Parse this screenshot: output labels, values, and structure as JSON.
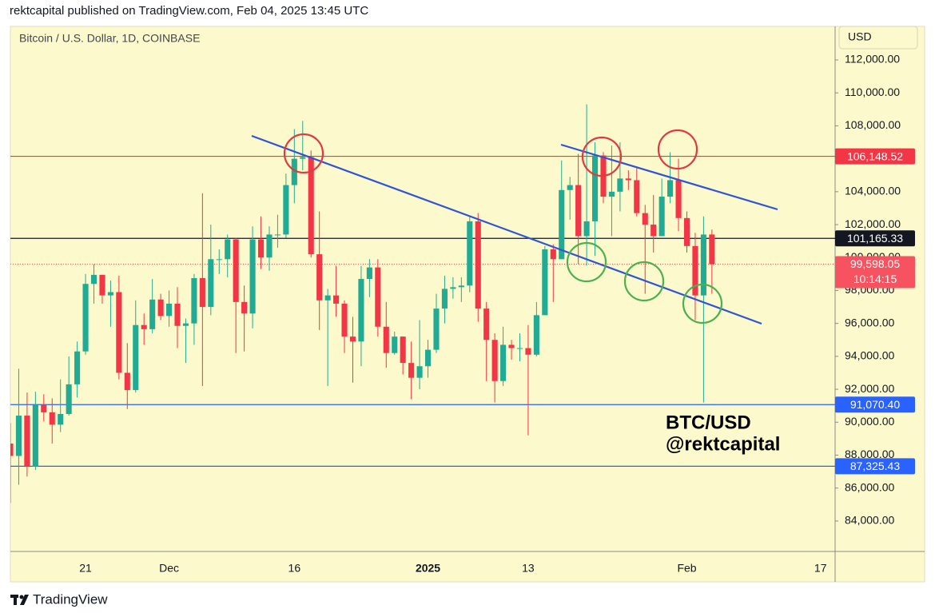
{
  "header": {
    "byline": "rektcapital published on TradingView.com, Feb 04, 2025 13:45 UTC"
  },
  "chart_data": {
    "type": "candlestick",
    "title": "Bitcoin / U.S. Dollar, 1D, COINBASE",
    "currency": "USD",
    "categories": [
      null,
      null,
      null,
      null,
      null,
      null,
      null,
      null,
      null,
      "21",
      null,
      null,
      null,
      null,
      null,
      null,
      null,
      null,
      null,
      "Dec",
      null,
      null,
      null,
      null,
      null,
      null,
      null,
      null,
      null,
      null,
      null,
      null,
      null,
      null,
      "16",
      null,
      null,
      null,
      null,
      null,
      null,
      null,
      null,
      null,
      null,
      null,
      null,
      null,
      null,
      null,
      "2025",
      null,
      null,
      null,
      null,
      null,
      null,
      null,
      null,
      null,
      null,
      null,
      "13",
      null,
      null,
      null,
      null,
      null,
      null,
      null,
      null,
      null,
      null,
      null,
      null,
      null,
      null,
      null,
      null,
      null,
      null,
      "Feb",
      null,
      null,
      null,
      null,
      null,
      null,
      null,
      null,
      null,
      null,
      null,
      null,
      null,
      null,
      null,
      "17",
      null
    ],
    "open": [
      88700,
      87950,
      90400,
      87300,
      91050,
      90600,
      89850,
      90500,
      92300,
      94300,
      98400,
      98950,
      97700,
      97900,
      93000,
      91950,
      95900,
      95650,
      97450,
      96450,
      97200,
      95850,
      96000,
      98750,
      97000,
      99900,
      99900,
      101100,
      97300,
      96600,
      101100,
      100000,
      101400,
      101400,
      104400,
      106000,
      106100,
      100200,
      97400,
      97700,
      97200,
      95200,
      94900,
      98700,
      99400,
      95800,
      94200,
      95200,
      93600,
      92700,
      93400,
      94400,
      96900,
      98100,
      98200,
      98300,
      102200,
      96900,
      95000,
      92500,
      94700,
      94500,
      94500,
      94100,
      96500,
      100500,
      99900,
      104100,
      104400,
      101300,
      102200,
      106200,
      103700,
      104000,
      104800,
      104700,
      102700,
      102000,
      101300,
      103700,
      104700,
      102400,
      100700,
      97700,
      101400,
      null,
      null,
      null,
      null,
      null,
      null,
      null,
      null,
      null,
      null,
      null,
      null,
      null,
      null
    ],
    "high": [
      89950,
      93250,
      91800,
      91850,
      91700,
      91450,
      92600,
      94000,
      94900,
      99000,
      99600,
      98950,
      98600,
      98900,
      94800,
      97400,
      96600,
      98700,
      97800,
      98000,
      98200,
      96300,
      99000,
      103900,
      102000,
      100500,
      101400,
      101200,
      98300,
      101900,
      102500,
      101900,
      102600,
      105100,
      107800,
      108300,
      106500,
      102800,
      98100,
      99500,
      97400,
      96400,
      99500,
      99900,
      99900,
      97300,
      95500,
      95200,
      94900,
      96200,
      95000,
      97800,
      98900,
      98800,
      98800,
      102500,
      102700,
      97300,
      95400,
      95800,
      95000,
      95400,
      95900,
      97300,
      100700,
      100800,
      105900,
      104900,
      106300,
      109300,
      107000,
      106400,
      106800,
      107000,
      105300,
      105500,
      103200,
      103800,
      104800,
      106400,
      106000,
      102800,
      101500,
      102500,
      101700,
      null,
      null,
      null,
      null,
      null,
      null,
      null,
      null,
      null,
      null,
      null,
      null,
      null,
      null
    ],
    "low": [
      85100,
      86200,
      86700,
      87100,
      90050,
      88700,
      89400,
      90400,
      91500,
      94100,
      97200,
      97200,
      95800,
      92600,
      90800,
      91800,
      94700,
      95400,
      96200,
      95800,
      94500,
      93600,
      94700,
      92200,
      96500,
      99000,
      98800,
      94200,
      94300,
      95700,
      99300,
      99200,
      100600,
      101200,
      103300,
      105300,
      100000,
      95600,
      92200,
      96400,
      94200,
      92400,
      93400,
      97600,
      95200,
      93300,
      94100,
      92900,
      91400,
      92000,
      92700,
      94200,
      96000,
      97500,
      97300,
      97900,
      96100,
      92500,
      91200,
      92200,
      93800,
      93700,
      89200,
      94000,
      96500,
      97300,
      99900,
      102300,
      99600,
      99500,
      100100,
      103300,
      101300,
      102800,
      104100,
      102500,
      97800,
      100300,
      101300,
      103300,
      101600,
      100300,
      96200,
      91200,
      97800,
      null,
      null,
      null,
      null,
      null,
      null,
      null,
      null,
      null,
      null,
      null,
      null,
      null,
      null
    ],
    "close": [
      87950,
      90400,
      87300,
      91050,
      90600,
      89850,
      90500,
      92300,
      94300,
      98400,
      98950,
      97700,
      97900,
      93000,
      91950,
      95900,
      95650,
      97450,
      96450,
      97200,
      95850,
      96000,
      98750,
      97000,
      99900,
      99900,
      101100,
      97300,
      96600,
      101100,
      100000,
      101400,
      101400,
      104400,
      106000,
      106100,
      100200,
      97400,
      97700,
      97200,
      95200,
      94900,
      98700,
      99400,
      95800,
      94200,
      95200,
      93600,
      92700,
      93400,
      94400,
      96900,
      98100,
      98200,
      98300,
      102200,
      96900,
      95000,
      92500,
      94700,
      94500,
      94500,
      94100,
      96500,
      100500,
      99900,
      104100,
      104400,
      101300,
      102200,
      106200,
      103700,
      104000,
      104800,
      104700,
      102700,
      102000,
      101300,
      103700,
      104700,
      102400,
      100700,
      97700,
      101400,
      99598.05,
      null,
      null,
      null,
      null,
      null,
      null,
      null,
      null,
      null,
      null,
      null,
      null,
      null,
      null
    ],
    "up_color": "#22ab94",
    "down_color": "#f23645",
    "ylim": [
      82150,
      114040
    ],
    "yticks": [
      {
        "value": 84000,
        "label": "84,000.00"
      },
      {
        "value": 86000,
        "label": "86,000.00"
      },
      {
        "value": 88000,
        "label": "88,000.00"
      },
      {
        "value": 90000,
        "label": "90,000.00"
      },
      {
        "value": 92000,
        "label": "92,000.00"
      },
      {
        "value": 94000,
        "label": "94,000.00"
      },
      {
        "value": 96000,
        "label": "96,000.00"
      },
      {
        "value": 98000,
        "label": "98,000.00"
      },
      {
        "value": 100000,
        "label": "100,000.00"
      },
      {
        "value": 102000,
        "label": "102,000.00"
      },
      {
        "value": 104000,
        "label": "104,000.00"
      },
      {
        "value": 106000,
        "label": "106,000.00"
      },
      {
        "value": 108000,
        "label": "108,000.00"
      },
      {
        "value": 110000,
        "label": "110,000.00"
      },
      {
        "value": 112000,
        "label": "112,000.00"
      }
    ],
    "levels": [
      {
        "value": 106148.52,
        "label": "106,148.52",
        "color": "#f23645"
      },
      {
        "value": 101165.33,
        "label": "101,165.33",
        "color": "#131722"
      },
      {
        "value": 91070.4,
        "label": "91,070.40",
        "color": "#2962ff"
      },
      {
        "value": 87325.43,
        "label": "87,325.43",
        "color": "#2962ff"
      }
    ],
    "last_price": {
      "value": 99598.05,
      "label": "99,598.05",
      "countdown": "10:14:15",
      "color": "#f7525f"
    },
    "annotation": [
      "BTC/USD",
      "@rektcapital"
    ]
  },
  "footer": {
    "brand": "TradingView"
  }
}
